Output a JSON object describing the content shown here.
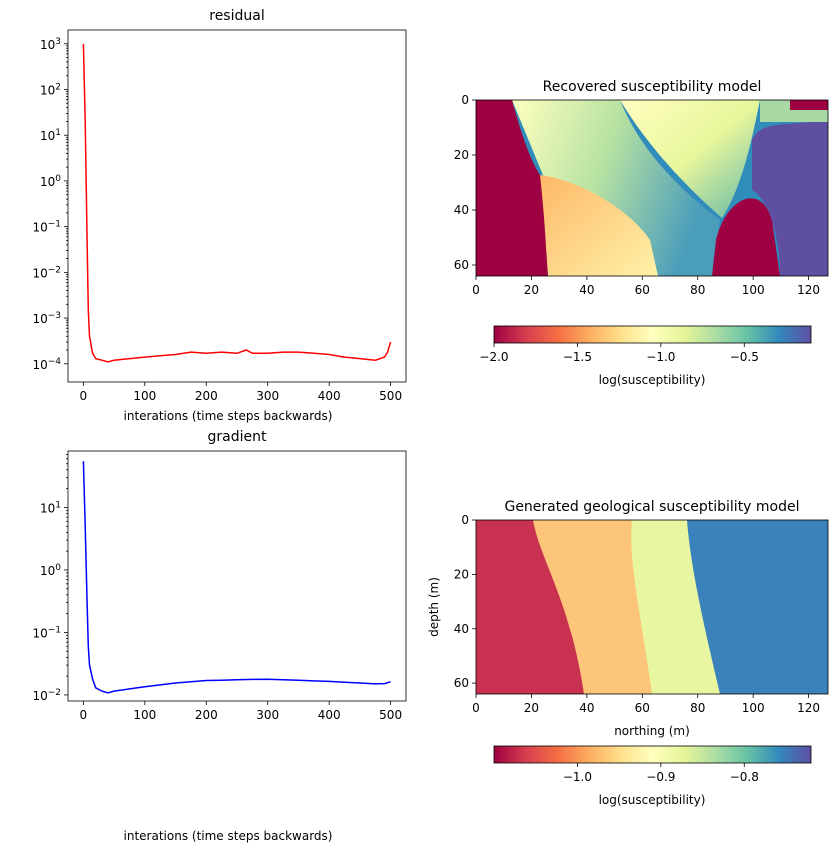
{
  "chart_data": [
    {
      "type": "line",
      "title": "residual",
      "xlabel": "interations (time steps backwards)",
      "ylabel": "",
      "yscale": "log",
      "xlim": [
        -25,
        525
      ],
      "ylim": [
        4e-05,
        2000
      ],
      "xticks": [
        "0",
        "100",
        "200",
        "300",
        "400",
        "500"
      ],
      "yticks": [
        "10−4",
        "10−3",
        "10−2",
        "10−1",
        "100",
        "101",
        "102",
        "103"
      ],
      "grid": false,
      "series_color": "#ff0000",
      "x": [
        0,
        3,
        6,
        8,
        10,
        15,
        20,
        30,
        40,
        50,
        75,
        100,
        125,
        150,
        175,
        200,
        225,
        250,
        265,
        275,
        300,
        325,
        350,
        375,
        400,
        425,
        450,
        475,
        490,
        495,
        500
      ],
      "y": [
        1000,
        20,
        0.05,
        0.0015,
        0.0004,
        0.00017,
        0.00013,
        0.00012,
        0.00011,
        0.00012,
        0.00013,
        0.00014,
        0.00015,
        0.00016,
        0.00018,
        0.00017,
        0.00018,
        0.00017,
        0.0002,
        0.00017,
        0.00017,
        0.00018,
        0.00018,
        0.00017,
        0.00016,
        0.00014,
        0.00013,
        0.00012,
        0.00014,
        0.00018,
        0.0003
      ]
    },
    {
      "type": "heatmap",
      "title": "Recovered susceptibility model",
      "xlabel": "",
      "ylabel": "",
      "xlim": [
        0,
        127
      ],
      "ylim": [
        64,
        0
      ],
      "xticks": [
        "0",
        "20",
        "40",
        "60",
        "80",
        "100",
        "120"
      ],
      "yticks": [
        "0",
        "20",
        "40",
        "60"
      ],
      "colormap": "Spectral",
      "colorbar_label": "log(susceptibility)",
      "colorbar_range": [
        -2.0,
        -0.1
      ],
      "colorbar_ticks": [
        "−2.0",
        "−1.5",
        "−1.0",
        "−0.5"
      ]
    },
    {
      "type": "line",
      "title": "gradient",
      "xlabel": "interations (time steps backwards)",
      "ylabel": "",
      "yscale": "log",
      "xlim": [
        -25,
        525
      ],
      "ylim": [
        0.008,
        80
      ],
      "xticks": [
        "0",
        "100",
        "200",
        "300",
        "400",
        "500"
      ],
      "yticks": [
        "10−2",
        "10−1",
        "100",
        "101"
      ],
      "grid": false,
      "series_color": "#0000ff",
      "x": [
        0,
        3,
        6,
        8,
        10,
        15,
        20,
        30,
        40,
        50,
        75,
        100,
        125,
        150,
        175,
        200,
        225,
        250,
        275,
        300,
        325,
        350,
        375,
        400,
        425,
        450,
        475,
        490,
        500
      ],
      "y": [
        55,
        5,
        0.3,
        0.06,
        0.03,
        0.018,
        0.013,
        0.0115,
        0.0108,
        0.0115,
        0.0125,
        0.0135,
        0.0145,
        0.0155,
        0.0163,
        0.017,
        0.0172,
        0.0175,
        0.0177,
        0.0178,
        0.0175,
        0.0172,
        0.0168,
        0.0165,
        0.016,
        0.0155,
        0.015,
        0.0152,
        0.0162
      ]
    },
    {
      "type": "heatmap",
      "title": "Generated geological susceptibility model",
      "xlabel": "northing (m)",
      "ylabel": "depth (m)",
      "xlim": [
        0,
        127
      ],
      "ylim": [
        64,
        0
      ],
      "xticks": [
        "0",
        "20",
        "40",
        "60",
        "80",
        "100",
        "120"
      ],
      "yticks": [
        "0",
        "20",
        "40",
        "60"
      ],
      "colormap": "Spectral",
      "colorbar_label": "log(susceptibility)",
      "colorbar_range": [
        -1.1,
        -0.72
      ],
      "colorbar_ticks": [
        "−1.0",
        "−0.9",
        "−0.8"
      ]
    }
  ]
}
